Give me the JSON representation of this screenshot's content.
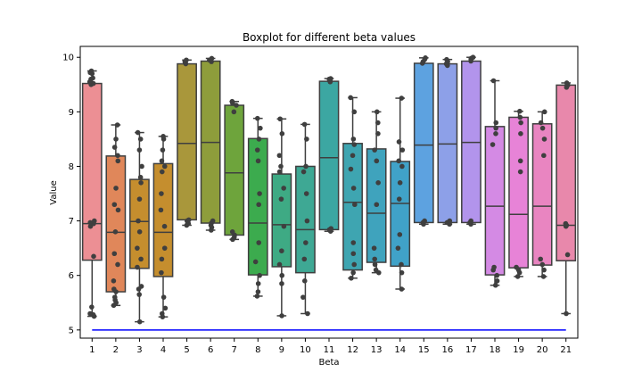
{
  "chart_data": {
    "type": "boxplot",
    "title": "Boxplot for different beta values",
    "xlabel": "Beta",
    "ylabel": "Value",
    "categories": [
      "1",
      "2",
      "3",
      "4",
      "5",
      "6",
      "7",
      "8",
      "9",
      "10",
      "11",
      "12",
      "13",
      "14",
      "15",
      "16",
      "17",
      "18",
      "19",
      "20",
      "21"
    ],
    "ylim": [
      4.85,
      10.2
    ],
    "yticks": [
      5,
      6,
      7,
      8,
      9,
      10
    ],
    "grid": false,
    "boxes": [
      {
        "cat": "1",
        "color": "#ec8f94",
        "whislo": 5.25,
        "q1": 6.28,
        "med": 6.95,
        "q3": 9.52,
        "whishi": 9.75
      },
      {
        "cat": "2",
        "color": "#e0875a",
        "whislo": 5.45,
        "q1": 5.7,
        "med": 6.79,
        "q3": 8.19,
        "whishi": 8.76
      },
      {
        "cat": "3",
        "color": "#c58e2e",
        "whislo": 5.15,
        "q1": 6.13,
        "med": 6.99,
        "q3": 7.76,
        "whishi": 8.62
      },
      {
        "cat": "4",
        "color": "#c58e2e",
        "whislo": 5.24,
        "q1": 5.98,
        "med": 6.79,
        "q3": 8.05,
        "whishi": 8.55
      },
      {
        "cat": "5",
        "color": "#a9973b",
        "whislo": 6.92,
        "q1": 7.02,
        "med": 8.42,
        "q3": 9.88,
        "whishi": 9.95
      },
      {
        "cat": "6",
        "color": "#8e9d3b",
        "whislo": 6.83,
        "q1": 6.96,
        "med": 8.44,
        "q3": 9.93,
        "whishi": 9.98
      },
      {
        "cat": "7",
        "color": "#6ea43c",
        "whislo": 6.66,
        "q1": 6.74,
        "med": 7.88,
        "q3": 9.12,
        "whishi": 9.19
      },
      {
        "cat": "8",
        "color": "#3cab4e",
        "whislo": 5.62,
        "q1": 6.01,
        "med": 6.96,
        "q3": 8.51,
        "whishi": 8.88
      },
      {
        "cat": "9",
        "color": "#3eaa84",
        "whislo": 5.26,
        "q1": 6.16,
        "med": 6.93,
        "q3": 7.86,
        "whishi": 8.87
      },
      {
        "cat": "10",
        "color": "#3ea894",
        "whislo": 5.3,
        "q1": 6.05,
        "med": 6.84,
        "q3": 8.0,
        "whishi": 8.77
      },
      {
        "cat": "11",
        "color": "#3ca7a2",
        "whislo": 6.81,
        "q1": 6.84,
        "med": 8.16,
        "q3": 9.56,
        "whishi": 9.61
      },
      {
        "cat": "12",
        "color": "#3ea5b1",
        "whislo": 5.95,
        "q1": 6.1,
        "med": 7.34,
        "q3": 8.42,
        "whishi": 9.26
      },
      {
        "cat": "13",
        "color": "#3fa3bd",
        "whislo": 6.05,
        "q1": 6.24,
        "med": 7.14,
        "q3": 8.32,
        "whishi": 9.0
      },
      {
        "cat": "14",
        "color": "#40a2c8",
        "whislo": 5.75,
        "q1": 6.17,
        "med": 7.32,
        "q3": 8.09,
        "whishi": 9.25
      },
      {
        "cat": "15",
        "color": "#5da2e0",
        "whislo": 6.94,
        "q1": 6.97,
        "med": 8.39,
        "q3": 9.89,
        "whishi": 9.99
      },
      {
        "cat": "16",
        "color": "#8da0e8",
        "whislo": 6.94,
        "q1": 6.97,
        "med": 8.41,
        "q3": 9.88,
        "whishi": 9.96
      },
      {
        "cat": "17",
        "color": "#b294ec",
        "whislo": 6.94,
        "q1": 6.97,
        "med": 8.44,
        "q3": 9.93,
        "whishi": 10.0
      },
      {
        "cat": "18",
        "color": "#d48ae4",
        "whislo": 5.82,
        "q1": 6.01,
        "med": 7.27,
        "q3": 8.73,
        "whishi": 9.57
      },
      {
        "cat": "19",
        "color": "#e783d7",
        "whislo": 5.98,
        "q1": 6.14,
        "med": 7.12,
        "q3": 8.9,
        "whishi": 9.01
      },
      {
        "cat": "20",
        "color": "#e985c1",
        "whislo": 5.98,
        "q1": 6.19,
        "med": 7.27,
        "q3": 8.78,
        "whishi": 9.0
      },
      {
        "cat": "21",
        "color": "#e888ab",
        "whislo": 5.3,
        "q1": 6.27,
        "med": 6.92,
        "q3": 9.49,
        "whishi": 9.53
      }
    ],
    "reference_line": {
      "y": 5.0,
      "x_start": "1",
      "x_end": "21",
      "color": "#0000ff"
    },
    "strip_points": {
      "1": [
        5.25,
        5.28,
        5.3,
        5.42,
        6.35,
        6.9,
        6.95,
        6.97,
        7.0,
        9.5,
        9.52,
        9.55,
        9.6,
        9.62,
        9.7,
        9.72,
        9.75
      ],
      "2": [
        5.45,
        5.5,
        5.55,
        5.6,
        5.7,
        5.75,
        5.9,
        6.2,
        6.4,
        6.8,
        7.2,
        7.3,
        7.6,
        8.1,
        8.2,
        8.35,
        8.5,
        8.76
      ],
      "3": [
        5.15,
        5.65,
        5.75,
        5.8,
        6.15,
        6.3,
        6.5,
        6.8,
        7.0,
        7.4,
        7.7,
        7.8,
        8.0,
        8.3,
        8.5,
        8.62
      ],
      "4": [
        5.24,
        5.3,
        5.4,
        5.6,
        6.05,
        6.3,
        6.5,
        6.9,
        7.2,
        7.5,
        7.9,
        8.0,
        8.1,
        8.3,
        8.5,
        8.55
      ],
      "5": [
        6.92,
        6.95,
        7.0,
        7.02,
        9.88,
        9.9,
        9.92,
        9.95
      ],
      "6": [
        6.83,
        6.88,
        6.92,
        6.96,
        7.0,
        9.92,
        9.95,
        9.98
      ],
      "7": [
        6.66,
        6.7,
        6.74,
        6.8,
        9.0,
        9.12,
        9.16,
        9.19
      ],
      "8": [
        5.62,
        5.7,
        5.85,
        6.0,
        6.25,
        6.6,
        7.3,
        7.5,
        8.1,
        8.3,
        8.5,
        8.7,
        8.88
      ],
      "9": [
        5.26,
        5.85,
        6.0,
        6.2,
        6.45,
        6.9,
        7.4,
        7.6,
        7.9,
        8.0,
        8.2,
        8.6,
        8.87
      ],
      "10": [
        5.3,
        5.6,
        5.9,
        6.3,
        6.6,
        7.0,
        7.5,
        7.9,
        8.0,
        8.5,
        8.77
      ],
      "11": [
        6.81,
        6.84,
        6.86,
        9.55,
        9.57,
        9.6,
        9.61
      ],
      "12": [
        5.95,
        6.05,
        6.2,
        6.4,
        6.6,
        7.3,
        7.6,
        7.95,
        8.2,
        8.4,
        8.5,
        9.0,
        9.26
      ],
      "13": [
        6.05,
        6.1,
        6.2,
        6.3,
        6.5,
        7.3,
        7.7,
        8.1,
        8.3,
        8.6,
        8.8,
        9.0
      ],
      "14": [
        5.75,
        6.05,
        6.2,
        6.5,
        6.75,
        7.4,
        7.7,
        8.0,
        8.1,
        8.3,
        8.45,
        9.25
      ],
      "15": [
        6.94,
        6.97,
        7.0,
        9.89,
        9.92,
        9.96,
        9.99
      ],
      "16": [
        6.94,
        6.97,
        7.0,
        9.85,
        9.88,
        9.92,
        9.96
      ],
      "17": [
        6.94,
        6.97,
        7.0,
        9.93,
        9.96,
        9.98,
        10.0
      ],
      "18": [
        5.82,
        5.9,
        6.0,
        6.1,
        6.15,
        8.4,
        8.6,
        8.7,
        8.8,
        9.57
      ],
      "19": [
        5.98,
        6.05,
        6.1,
        6.15,
        7.9,
        8.1,
        8.6,
        8.8,
        8.9,
        9.01
      ],
      "20": [
        5.98,
        6.1,
        6.2,
        6.3,
        8.2,
        8.5,
        8.7,
        8.8,
        9.0
      ],
      "21": [
        5.3,
        6.38,
        6.9,
        6.92,
        6.95,
        9.45,
        9.49,
        9.53
      ]
    }
  }
}
